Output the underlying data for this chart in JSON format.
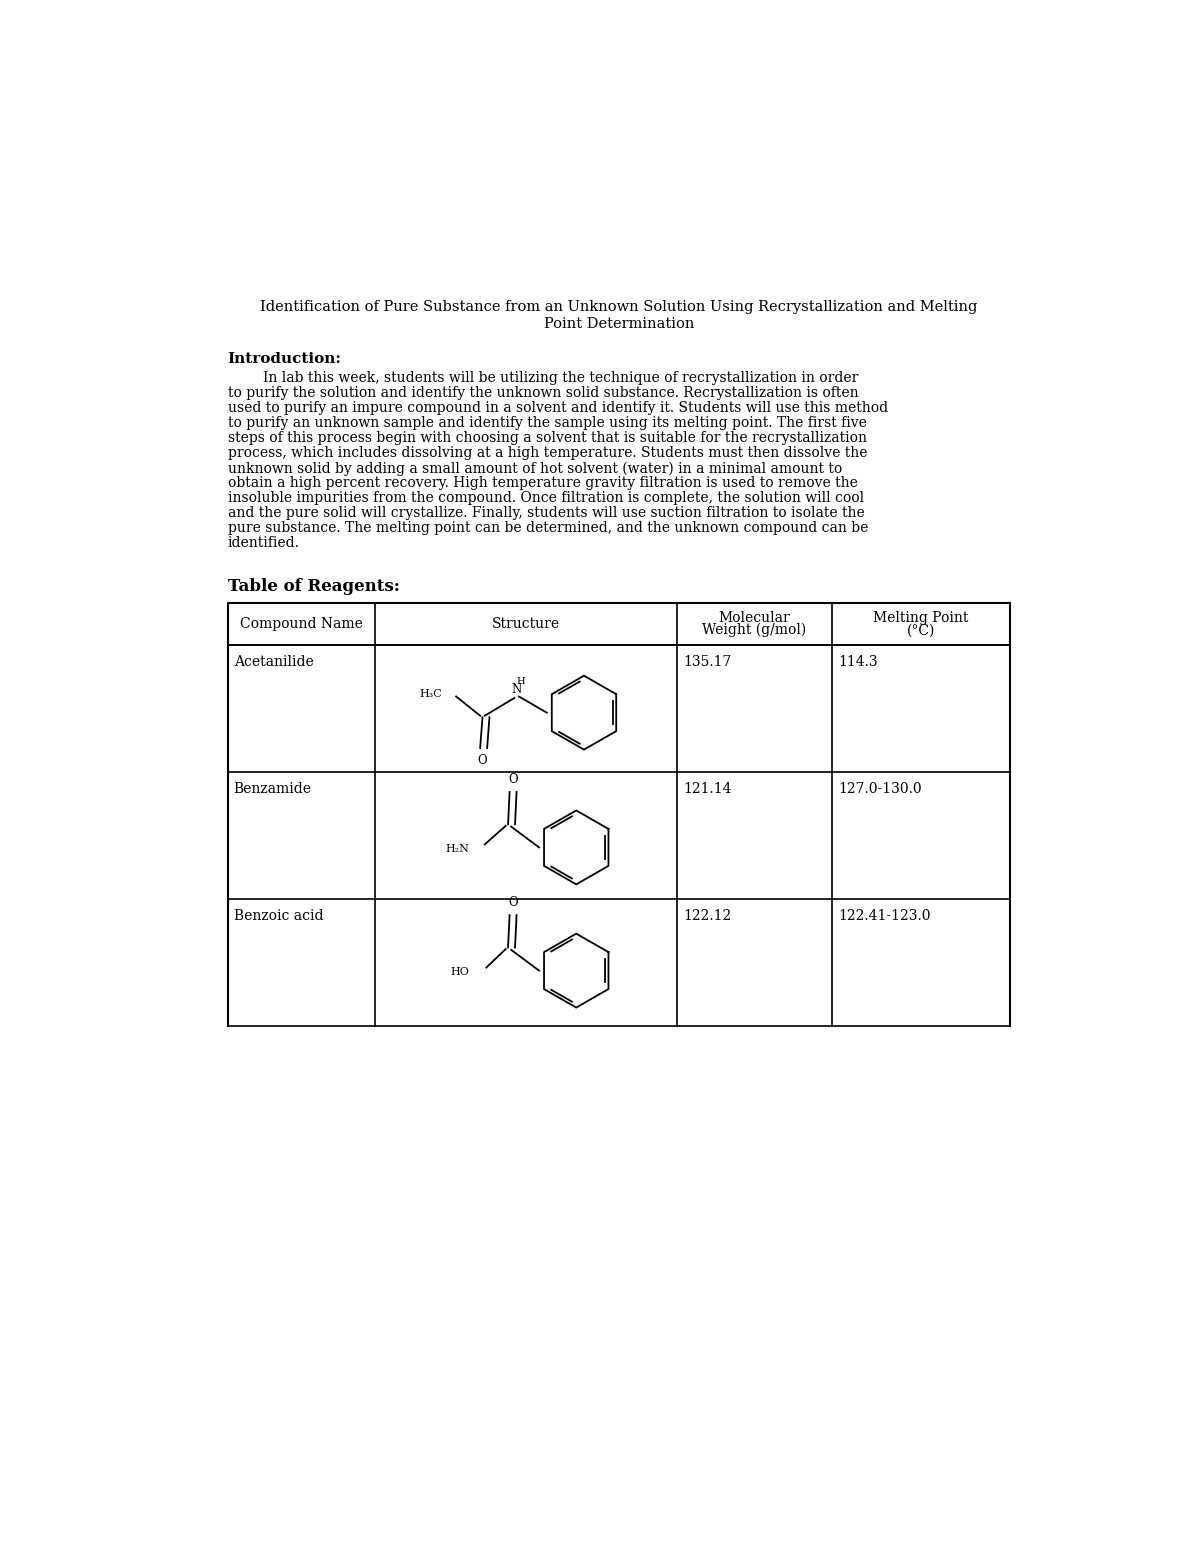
{
  "title_line1": "Identification of Pure Substance from an Unknown Solution Using Recrystallization and Melting",
  "title_line2": "Point Determination",
  "intro_heading": "Introduction:",
  "intro_text": "        In lab this week, students will be utilizing the technique of recrystallization in order\nto purify the solution and identify the unknown solid substance. Recrystallization is often\nused to purify an impure compound in a solvent and identify it. Students will use this method\nto purify an unknown sample and identify the sample using its melting point. The first five\nsteps of this process begin with choosing a solvent that is suitable for the recrystallization\nprocess, which includes dissolving at a high temperature. Students must then dissolve the\nunknown solid by adding a small amount of hot solvent (water) in a minimal amount to\nobtain a high percent recovery. High temperature gravity filtration is used to remove the\ninsoluble impurities from the compound. Once filtration is complete, the solution will cool\nand the pure solid will crystallize. Finally, students will use suction filtration to isolate the\npure substance. The melting point can be determined, and the unknown compound can be\nidentified.",
  "table_heading": "Table of Reagents:",
  "col_headers": [
    "Compound Name",
    "Structure",
    "Molecular\nWeight (g/mol)",
    "Melting Point\n(°C)"
  ],
  "compounds": [
    "Acetanilide",
    "Benzamide",
    "Benzoic acid"
  ],
  "mol_weights": [
    "135.17",
    "121.14",
    "122.12"
  ],
  "melting_points": [
    "114.3",
    "127.0-130.0",
    "122.41-123.0"
  ],
  "bg_color": "#ffffff",
  "text_color": "#000000",
  "font_size_title": 10.5,
  "font_size_body": 10.0,
  "font_size_heading": 11.0,
  "font_size_table": 10.0,
  "font_size_chem": 8.0
}
